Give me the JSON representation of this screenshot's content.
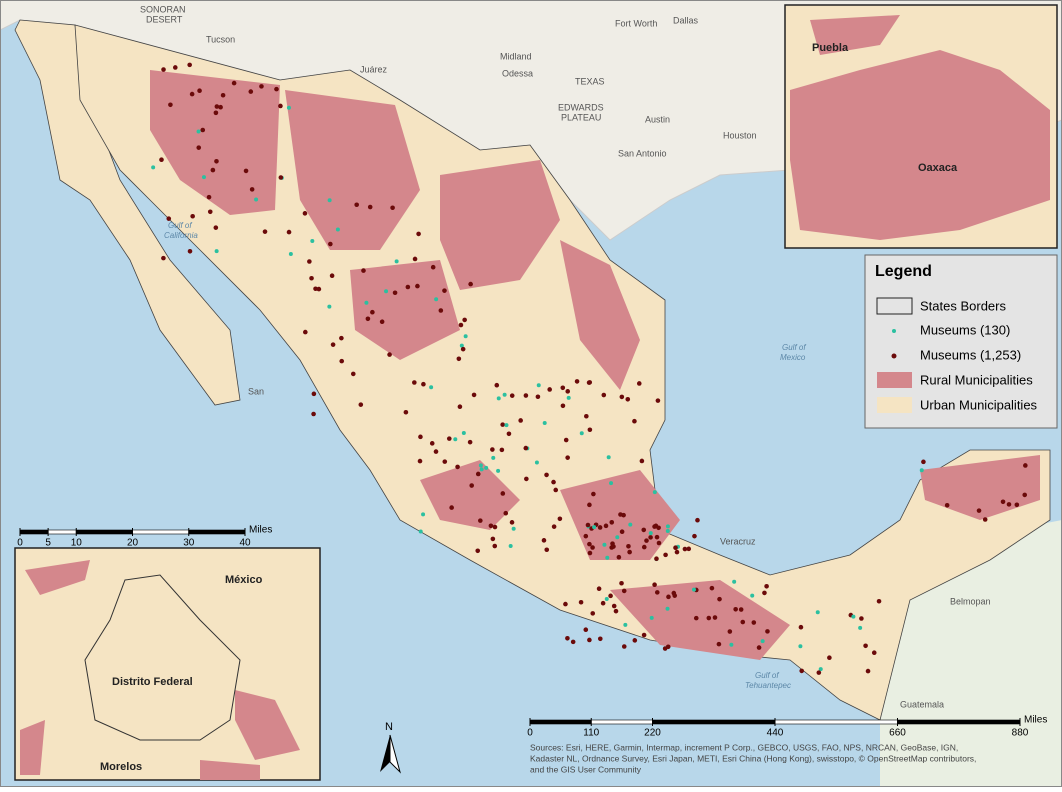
{
  "map": {
    "places": [
      "SONORAN",
      "DESERT",
      "Tucson",
      "Juárez",
      "Fort Worth",
      "Dallas",
      "Midland",
      "Odessa",
      "TEXAS",
      "EDWARDS",
      "PLATEAU",
      "Austin",
      "Houston",
      "San Antonio",
      "Veracruz",
      "Belmopan",
      "Guatemala",
      "San"
    ],
    "waters": [
      "Gulf of",
      "California",
      "Gulf of",
      "Mexico",
      "Gulf of",
      "Tehuantepec"
    ]
  },
  "inset_north": {
    "labels": [
      "Puebla",
      "Oaxaca"
    ]
  },
  "inset_cdmx": {
    "labels": [
      "México",
      "Distrito Federal",
      "Morelos"
    ],
    "scale": {
      "ticks": [
        0,
        5,
        10,
        20,
        30,
        40
      ],
      "unit": "Miles"
    }
  },
  "legend": {
    "title": "Legend",
    "items": [
      "States Borders",
      "Museums (130)",
      "Museums (1,253)",
      "Rural Municipalities",
      "Urban Municipalities"
    ]
  },
  "scale": {
    "ticks": [
      0,
      110,
      220,
      440,
      660,
      880
    ],
    "unit": "Miles"
  },
  "north_arrow": "N",
  "sources": [
    "Sources: Esri, HERE, Garmin, Intermap, increment P Corp., GEBCO, USGS, FAO, NPS, NRCAN, GeoBase, IGN,",
    "Kadaster NL, Ordnance Survey, Esri Japan, METI, Esri China (Hong Kong), swisstopo, © OpenStreetMap contributors,",
    "and the GIS User Community"
  ]
}
